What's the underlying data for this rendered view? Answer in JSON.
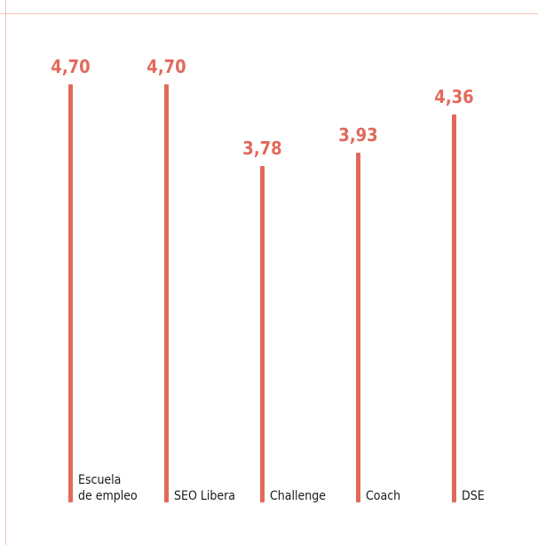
{
  "chart_data": {
    "type": "bar",
    "orientation": "vertical",
    "categories": [
      "Escuela\nde empleo",
      "SEO Libera",
      "Challenge",
      "Coach",
      "DSE"
    ],
    "values": [
      4.7,
      4.7,
      3.78,
      3.93,
      4.36
    ],
    "value_labels": [
      "4,70",
      "4,70",
      "3,78",
      "3,93",
      "4,36"
    ],
    "title": "",
    "xlabel": "",
    "ylabel": "",
    "ylim": [
      0,
      4.7
    ],
    "grid": false,
    "legend": "none",
    "colors": {
      "bar": "#e2695a",
      "label": "#e2695a",
      "text": "#1a1a1a",
      "frame": "#f0c4b4"
    }
  }
}
